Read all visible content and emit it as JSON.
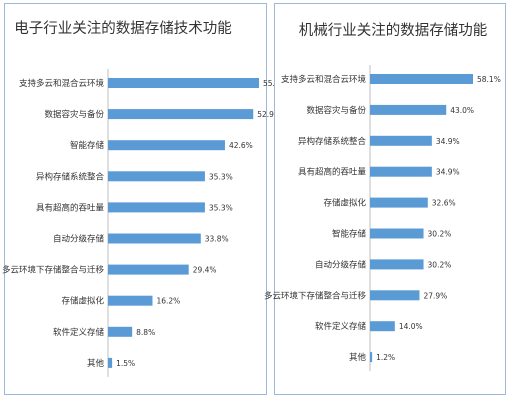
{
  "chart_data": [
    {
      "type": "bar",
      "orientation": "horizontal",
      "title": "电子行业关注的数据存储技术功能",
      "categories": [
        "支持多云和混合云环境",
        "数据容灾与备份",
        "智能存储",
        "异构存储系统整合",
        "具有超高的吞吐量",
        "自动分级存储",
        "多云环境下存储整合与迁移",
        "存储虚拟化",
        "软件定义存储",
        "其他"
      ],
      "values": [
        55,
        52.9,
        42.6,
        35.3,
        35.3,
        33.8,
        29.4,
        16.2,
        8.8,
        1.5
      ],
      "value_labels": [
        "55.",
        "52.9",
        "42.6%",
        "35.3%",
        "35.3%",
        "33.8%",
        "29.4%",
        "16.2%",
        "8.8%",
        "1.5%"
      ],
      "bar_color": "#5b9bd5",
      "xlim": [
        0,
        55
      ],
      "grid": false,
      "legend": "none"
    },
    {
      "type": "bar",
      "orientation": "horizontal",
      "title": "机械行业关注的数据存储功能",
      "categories": [
        "支持多云和混合云环境",
        "数据容灾与备份",
        "异构存储系统整合",
        "具有超高的吞吐量",
        "存储虚拟化",
        "智能存储",
        "自动分级存储",
        "多云环境下存储整合与迁移",
        "软件定义存储",
        "其他"
      ],
      "values": [
        58.1,
        43.0,
        34.9,
        34.9,
        32.6,
        30.2,
        30.2,
        27.9,
        14.0,
        1.2
      ],
      "value_labels": [
        "58.1%",
        "43.0%",
        "34.9%",
        "34.9%",
        "32.6%",
        "30.2%",
        "30.2%",
        "27.9%",
        "14.0%",
        "1.2%"
      ],
      "bar_color": "#5b9bd5",
      "xlim": [
        0,
        58.1
      ],
      "grid": false,
      "legend": "none"
    }
  ]
}
